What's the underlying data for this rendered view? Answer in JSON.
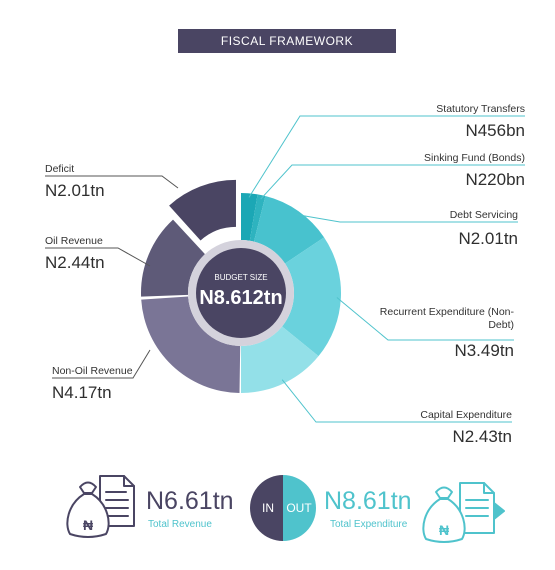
{
  "header": {
    "title": "FISCAL FRAMEWORK"
  },
  "chart_data": {
    "type": "pie",
    "title": "",
    "center": {
      "label": "BUDGET SIZE",
      "value": "N8.612tn"
    },
    "revenue_slices": [
      {
        "name": "Deficit",
        "value": 2.01,
        "value_label": "N2.01tn",
        "color": "#4a4563"
      },
      {
        "name": "Oil Revenue",
        "value": 2.44,
        "value_label": "N2.44tn",
        "color": "#5e5a78"
      },
      {
        "name": "Non-Oil Revenue",
        "value": 4.17,
        "value_label": "N4.17tn",
        "color": "#7a7596"
      }
    ],
    "expenditure_slices": [
      {
        "name": "Statutory Transfers",
        "value": 0.456,
        "value_label": "N456bn",
        "color": "#1ba7b5"
      },
      {
        "name": "Sinking Fund (Bonds)",
        "value": 0.22,
        "value_label": "N220bn",
        "color": "#2eb3bf"
      },
      {
        "name": "Debt Servicing",
        "value": 2.01,
        "value_label": "N2.01tn",
        "color": "#48c2ce"
      },
      {
        "name": "Recurrent Expenditure (Non-Debt)",
        "value": 3.49,
        "value_label": "N3.49tn",
        "color": "#6ad2dd"
      },
      {
        "name": "Capital Expenditure",
        "value": 2.43,
        "value_label": "N2.43tn",
        "color": "#93e0e8"
      }
    ],
    "colors": {
      "revenue_accent": "#4a4563",
      "expenditure_accent": "#4fc3cc",
      "leader_line": "#4fc3cc"
    }
  },
  "totals": {
    "revenue": {
      "value": "N6.61tn",
      "label": "Total Revenue",
      "icon": "money-bag-document-icon"
    },
    "expenditure": {
      "value": "N8.61tn",
      "label": "Total Expenditure",
      "icon": "money-bag-document-arrow-icon"
    },
    "in_label": "IN",
    "out_label": "OUT"
  }
}
